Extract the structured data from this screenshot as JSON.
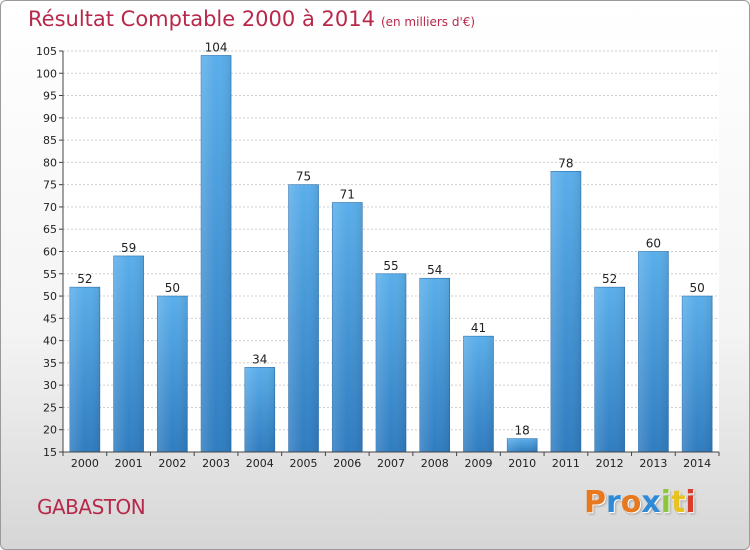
{
  "chart_data": {
    "type": "bar",
    "title": "Résultat Comptable 2000 à 2014",
    "subtitle": "(en milliers d'€)",
    "categories": [
      "2000",
      "2001",
      "2002",
      "2003",
      "2004",
      "2005",
      "2006",
      "2007",
      "2008",
      "2009",
      "2010",
      "2011",
      "2012",
      "2013",
      "2014"
    ],
    "values": [
      52,
      59,
      50,
      104,
      34,
      75,
      71,
      55,
      54,
      41,
      18,
      78,
      52,
      60,
      50
    ],
    "ylim": [
      15,
      105
    ],
    "yticks": [
      15,
      20,
      25,
      30,
      35,
      40,
      45,
      50,
      55,
      60,
      65,
      70,
      75,
      80,
      85,
      90,
      95,
      100,
      105
    ],
    "grid": true,
    "bar_color": "#3f93d6",
    "label_color": "#b8284a"
  },
  "commune": "GABASTON",
  "logo": {
    "letters": [
      "P",
      "r",
      "o",
      "x",
      "i",
      "t",
      "i"
    ],
    "colors": [
      "#e8781e",
      "#2e8ad6",
      "#e8781e",
      "#2e8ad6",
      "#8cc63f",
      "#e8c21e",
      "#d93e2a"
    ]
  }
}
